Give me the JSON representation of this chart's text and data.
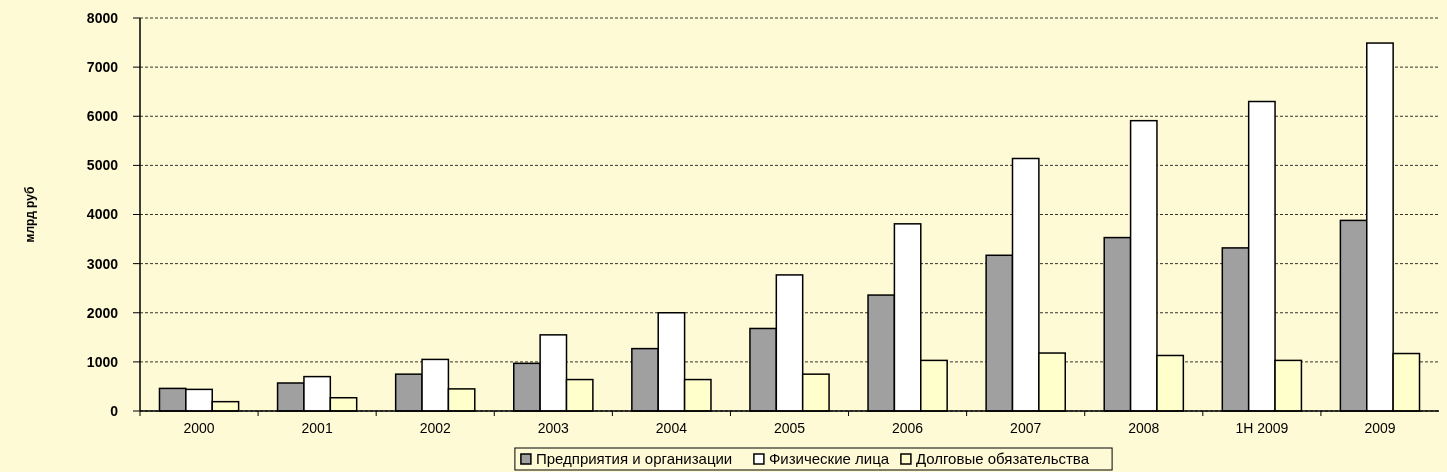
{
  "chart_data": {
    "type": "bar",
    "ylabel": "млрд руб",
    "categories": [
      "2000",
      "2001",
      "2002",
      "2003",
      "2004",
      "2005",
      "2006",
      "2007",
      "2008",
      "1H 2009",
      "2009"
    ],
    "series": [
      {
        "name": "Предприятия и организации",
        "color": "#a0a0a0",
        "values": [
          460,
          570,
          750,
          970,
          1270,
          1680,
          2360,
          3170,
          3530,
          3320,
          3880
        ]
      },
      {
        "name": "Физические лица",
        "color": "#ffffff",
        "values": [
          440,
          700,
          1050,
          1550,
          2000,
          2770,
          3810,
          5140,
          5910,
          6300,
          7490
        ]
      },
      {
        "name": "Долговые обязательства",
        "color": "#ffffcc",
        "values": [
          190,
          270,
          450,
          640,
          640,
          750,
          1030,
          1180,
          1130,
          1030,
          1170
        ]
      }
    ],
    "ylim": [
      0,
      8000
    ],
    "yticks": [
      0,
      1000,
      2000,
      3000,
      4000,
      5000,
      6000,
      7000,
      8000
    ],
    "grid": "y",
    "legend": "bottom"
  }
}
